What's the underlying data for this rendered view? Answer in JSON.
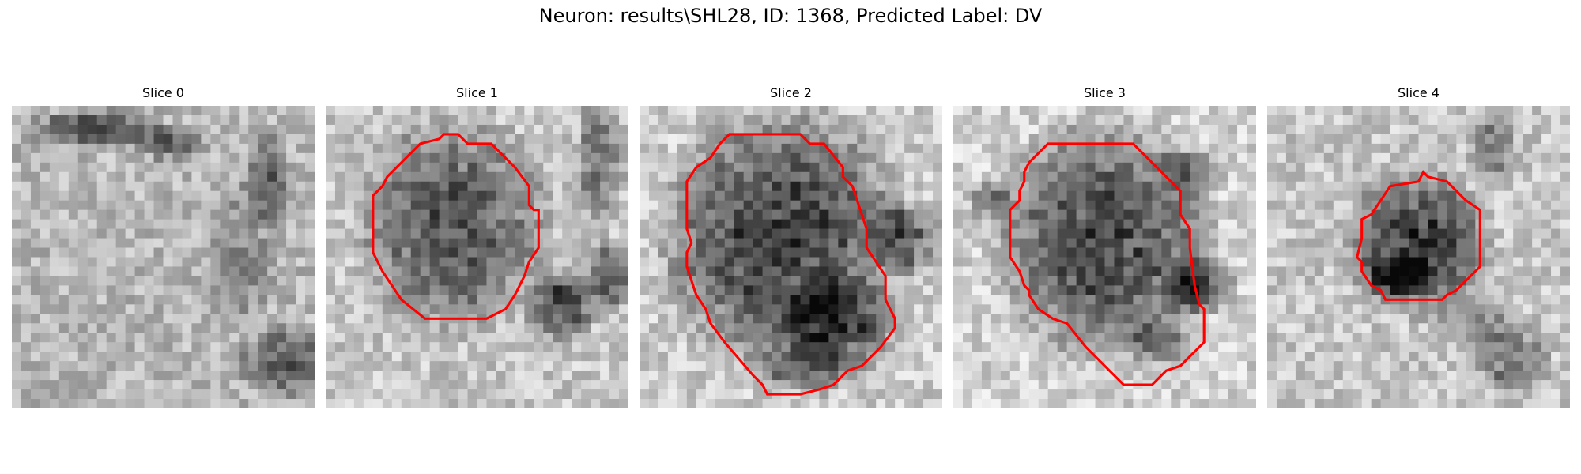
{
  "figure": {
    "suptitle": "Neuron: results\\SHL28, ID: 1368, Predicted Label: DV"
  },
  "panels": [
    {
      "title": "Slice 0",
      "has_contour": false
    },
    {
      "title": "Slice 1",
      "has_contour": true
    },
    {
      "title": "Slice 2",
      "has_contour": true
    },
    {
      "title": "Slice 3",
      "has_contour": true
    },
    {
      "title": "Slice 4",
      "has_contour": true
    }
  ],
  "colors": {
    "contour": "#ff0000",
    "background": "#ffffff"
  },
  "image": {
    "colormap": "gray",
    "grid": [
      32,
      32
    ]
  }
}
